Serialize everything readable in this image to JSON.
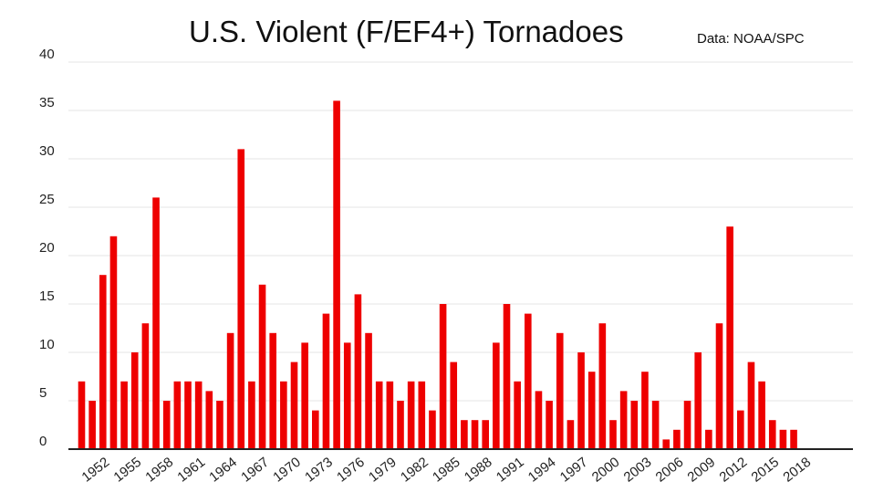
{
  "chart_data": {
    "type": "bar",
    "title": "U.S. Violent (F/EF4+) Tornadoes",
    "source": "Data: NOAA/SPC",
    "xlabel": "",
    "ylabel": "",
    "ylim": [
      0,
      40
    ],
    "yticks": [
      0,
      5,
      10,
      15,
      20,
      25,
      30,
      35,
      40
    ],
    "grid": true,
    "bar_color": "#ee0000",
    "categories": [
      "1950",
      "1951",
      "1952",
      "1953",
      "1954",
      "1955",
      "1956",
      "1957",
      "1958",
      "1959",
      "1960",
      "1961",
      "1962",
      "1963",
      "1964",
      "1965",
      "1966",
      "1967",
      "1968",
      "1969",
      "1970",
      "1971",
      "1972",
      "1973",
      "1974",
      "1975",
      "1976",
      "1977",
      "1978",
      "1979",
      "1980",
      "1981",
      "1982",
      "1983",
      "1984",
      "1985",
      "1986",
      "1987",
      "1988",
      "1989",
      "1990",
      "1991",
      "1992",
      "1993",
      "1994",
      "1995",
      "1996",
      "1997",
      "1998",
      "1999",
      "2000",
      "2001",
      "2002",
      "2003",
      "2004",
      "2005",
      "2006",
      "2007",
      "2008",
      "2009",
      "2010",
      "2011",
      "2012",
      "2013",
      "2014",
      "2015",
      "2016",
      "2017",
      "2018"
    ],
    "values": [
      7,
      5,
      18,
      22,
      7,
      10,
      13,
      26,
      5,
      7,
      7,
      7,
      6,
      5,
      12,
      31,
      7,
      17,
      12,
      7,
      9,
      11,
      4,
      14,
      36,
      11,
      16,
      12,
      7,
      7,
      5,
      7,
      7,
      4,
      15,
      9,
      3,
      3,
      3,
      11,
      15,
      7,
      14,
      6,
      5,
      12,
      3,
      10,
      8,
      13,
      3,
      6,
      5,
      8,
      5,
      1,
      2,
      5,
      10,
      2,
      13,
      23,
      4,
      9,
      7,
      3,
      2,
      2,
      0
    ],
    "xtick_labels": [
      "1952",
      "1955",
      "1958",
      "1961",
      "1964",
      "1967",
      "1970",
      "1973",
      "1976",
      "1979",
      "1982",
      "1985",
      "1988",
      "1991",
      "1994",
      "1997",
      "2000",
      "2003",
      "2006",
      "2009",
      "2012",
      "2015",
      "2018"
    ]
  }
}
